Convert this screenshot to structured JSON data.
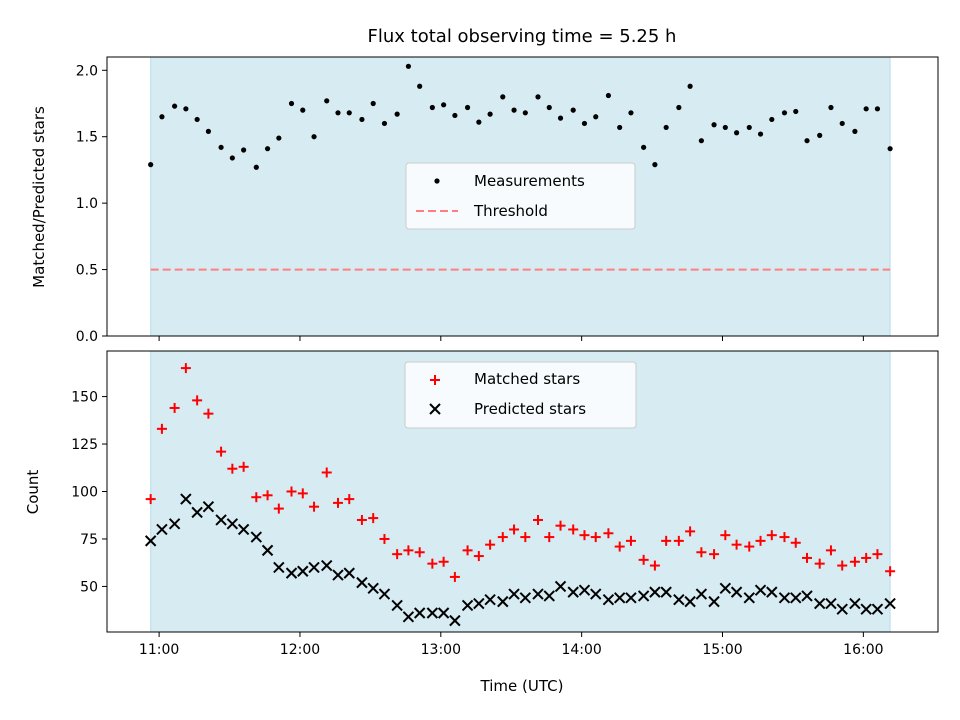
{
  "chart_data": {
    "type": "scatter",
    "title": "Flux total observing time = 5.25 h",
    "xlabel": "Time (UTC)",
    "x_unit": "hours (UTC)",
    "xlim": [
      10.63,
      16.53
    ],
    "x_ticks": [
      11,
      12,
      13,
      14,
      15,
      16
    ],
    "x_tick_labels": [
      "11:00",
      "12:00",
      "13:00",
      "14:00",
      "15:00",
      "16:00"
    ],
    "shaded_span": [
      10.94,
      16.19
    ],
    "colors": {
      "shade": "#add8e6",
      "measurements": "#000000",
      "threshold": "#ff7f7f",
      "matched": "#ff0000",
      "predicted": "#000000"
    },
    "panels": [
      {
        "ylabel": "Matched/Predicted stars",
        "ylim": [
          0.0,
          2.1
        ],
        "y_ticks": [
          0.0,
          0.5,
          1.0,
          1.5,
          2.0
        ],
        "y_tick_labels": [
          "0.0",
          "0.5",
          "1.0",
          "1.5",
          "2.0"
        ],
        "legend_position": "center",
        "legend": [
          {
            "label": "Measurements",
            "marker": "dot"
          },
          {
            "label": "Threshold",
            "marker": "dashed-line"
          }
        ],
        "threshold": 0.5,
        "series": [
          {
            "name": "Measurements",
            "marker": "dot",
            "x": [
              10.94,
              11.02,
              11.11,
              11.19,
              11.27,
              11.35,
              11.44,
              11.52,
              11.6,
              11.69,
              11.77,
              11.85,
              11.94,
              12.02,
              12.1,
              12.19,
              12.27,
              12.35,
              12.44,
              12.52,
              12.6,
              12.69,
              12.77,
              12.85,
              12.94,
              13.02,
              13.1,
              13.19,
              13.27,
              13.35,
              13.44,
              13.52,
              13.6,
              13.69,
              13.77,
              13.85,
              13.94,
              14.02,
              14.1,
              14.19,
              14.27,
              14.35,
              14.44,
              14.52,
              14.6,
              14.69,
              14.77,
              14.85,
              14.94,
              15.02,
              15.1,
              15.19,
              15.27,
              15.35,
              15.44,
              15.52,
              15.6,
              15.69,
              15.77,
              15.85,
              15.94,
              16.02,
              16.1,
              16.19
            ],
            "y": [
              1.29,
              1.65,
              1.73,
              1.71,
              1.63,
              1.54,
              1.42,
              1.34,
              1.4,
              1.27,
              1.41,
              1.49,
              1.75,
              1.7,
              1.5,
              1.77,
              1.68,
              1.68,
              1.63,
              1.75,
              1.6,
              1.67,
              2.03,
              1.88,
              1.72,
              1.74,
              1.66,
              1.72,
              1.61,
              1.67,
              1.8,
              1.7,
              1.68,
              1.8,
              1.72,
              1.64,
              1.7,
              1.6,
              1.65,
              1.81,
              1.57,
              1.68,
              1.42,
              1.29,
              1.57,
              1.72,
              1.88,
              1.47,
              1.59,
              1.57,
              1.53,
              1.57,
              1.52,
              1.63,
              1.68,
              1.69,
              1.47,
              1.51,
              1.72,
              1.6,
              1.54,
              1.71,
              1.71,
              1.41
            ]
          }
        ]
      },
      {
        "ylabel": "Count",
        "ylim": [
          26,
          174
        ],
        "y_ticks": [
          50,
          75,
          100,
          125,
          150
        ],
        "y_tick_labels": [
          "50",
          "75",
          "100",
          "125",
          "150"
        ],
        "legend_position": "top-center",
        "legend": [
          {
            "label": "Matched stars",
            "marker": "plus"
          },
          {
            "label": "Predicted stars",
            "marker": "x"
          }
        ],
        "series": [
          {
            "name": "Matched stars",
            "marker": "plus",
            "x": [
              10.94,
              11.02,
              11.11,
              11.19,
              11.27,
              11.35,
              11.44,
              11.52,
              11.6,
              11.69,
              11.77,
              11.85,
              11.94,
              12.02,
              12.1,
              12.19,
              12.27,
              12.35,
              12.44,
              12.52,
              12.6,
              12.69,
              12.77,
              12.85,
              12.94,
              13.02,
              13.1,
              13.19,
              13.27,
              13.35,
              13.44,
              13.52,
              13.6,
              13.69,
              13.77,
              13.85,
              13.94,
              14.02,
              14.1,
              14.19,
              14.27,
              14.35,
              14.44,
              14.52,
              14.6,
              14.69,
              14.77,
              14.85,
              14.94,
              15.02,
              15.1,
              15.19,
              15.27,
              15.35,
              15.44,
              15.52,
              15.6,
              15.69,
              15.77,
              15.85,
              15.94,
              16.02,
              16.1,
              16.19
            ],
            "y": [
              96,
              133,
              144,
              165,
              148,
              141,
              121,
              112,
              113,
              97,
              98,
              91,
              100,
              99,
              92,
              110,
              94,
              96,
              85,
              86,
              75,
              67,
              69,
              68,
              62,
              63,
              55,
              69,
              66,
              72,
              76,
              80,
              76,
              85,
              76,
              82,
              80,
              77,
              76,
              78,
              71,
              74,
              64,
              61,
              74,
              74,
              79,
              68,
              67,
              77,
              72,
              71,
              74,
              77,
              76,
              73,
              65,
              62,
              69,
              61,
              63,
              65,
              67,
              58
            ]
          },
          {
            "name": "Predicted stars",
            "marker": "x",
            "x": [
              10.94,
              11.02,
              11.11,
              11.19,
              11.27,
              11.35,
              11.44,
              11.52,
              11.6,
              11.69,
              11.77,
              11.85,
              11.94,
              12.02,
              12.1,
              12.19,
              12.27,
              12.35,
              12.44,
              12.52,
              12.6,
              12.69,
              12.77,
              12.85,
              12.94,
              13.02,
              13.1,
              13.19,
              13.27,
              13.35,
              13.44,
              13.52,
              13.6,
              13.69,
              13.77,
              13.85,
              13.94,
              14.02,
              14.1,
              14.19,
              14.27,
              14.35,
              14.44,
              14.52,
              14.6,
              14.69,
              14.77,
              14.85,
              14.94,
              15.02,
              15.1,
              15.19,
              15.27,
              15.35,
              15.44,
              15.52,
              15.6,
              15.69,
              15.77,
              15.85,
              15.94,
              16.02,
              16.1,
              16.19
            ],
            "y": [
              74,
              80,
              83,
              96,
              89,
              92,
              85,
              83,
              80,
              76,
              69,
              60,
              57,
              58,
              60,
              61,
              56,
              57,
              52,
              49,
              46,
              40,
              34,
              36,
              36,
              36,
              32,
              40,
              41,
              43,
              42,
              46,
              44,
              46,
              45,
              50,
              47,
              48,
              46,
              43,
              44,
              44,
              45,
              47,
              47,
              43,
              42,
              46,
              42,
              49,
              47,
              44,
              48,
              47,
              44,
              44,
              45,
              41,
              41,
              38,
              41,
              38,
              38,
              41
            ]
          }
        ]
      }
    ]
  }
}
